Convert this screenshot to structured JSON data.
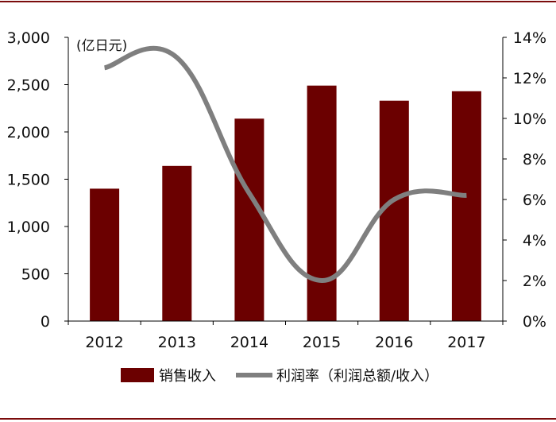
{
  "chart_data": {
    "type": "bar",
    "categories": [
      "2012",
      "2013",
      "2014",
      "2015",
      "2016",
      "2017"
    ],
    "series": [
      {
        "name": "销售收入",
        "type": "bar",
        "axis": "left",
        "color": "#6b0000",
        "values": [
          1400,
          1640,
          2140,
          2490,
          2330,
          2430
        ]
      },
      {
        "name": "利润率（利润总额/收入）",
        "type": "line",
        "axis": "right",
        "color": "#7f7f7f",
        "values": [
          12.5,
          13.0,
          6.3,
          2.0,
          6.0,
          6.2
        ]
      }
    ],
    "unit_label": "(亿日元)",
    "y_left": {
      "min": 0,
      "max": 3000,
      "ticks": [
        "0",
        "500",
        "1,000",
        "1,500",
        "2,000",
        "2,500",
        "3,000"
      ]
    },
    "y_right": {
      "min": 0,
      "max": 14,
      "ticks": [
        "0%",
        "2%",
        "4%",
        "6%",
        "8%",
        "10%",
        "12%",
        "14%"
      ]
    },
    "legend_position": "bottom",
    "grid": false
  }
}
